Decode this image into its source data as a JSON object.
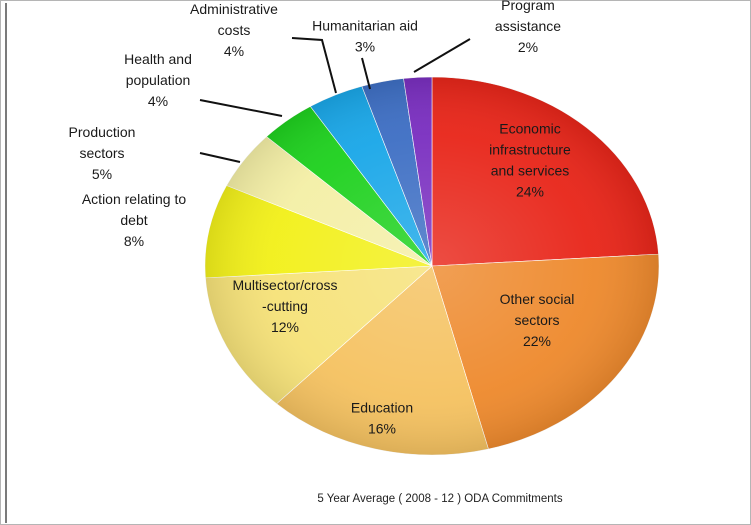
{
  "chart_data": {
    "type": "pie",
    "title": "",
    "caption": "5 Year Average ( 2008 - 12 ) ODA Commitments",
    "legend": "none",
    "slices": [
      {
        "label": "Economic\ninfrastructure\nand services",
        "percent": "24%",
        "value": 24,
        "color": "#e8261a"
      },
      {
        "label": "Other social\nsectors",
        "percent": "22%",
        "value": 22,
        "color": "#ee8a2e"
      },
      {
        "label": "Education",
        "percent": "16%",
        "value": 16,
        "color": "#f5c261"
      },
      {
        "label": "Multisector/cross\n-cutting",
        "percent": "12%",
        "value": 12,
        "color": "#f6e279"
      },
      {
        "label": "Action relating to\ndebt",
        "percent": "8%",
        "value": 8,
        "color": "#f2f01a"
      },
      {
        "label": "Production\nsectors",
        "percent": "5%",
        "value": 5,
        "color": "#f4efa6"
      },
      {
        "label": "Health and\npopulation",
        "percent": "4%",
        "value": 4,
        "color": "#1fd11f"
      },
      {
        "label": "Administrative\ncosts",
        "percent": "4%",
        "value": 4,
        "color": "#1aa7e8"
      },
      {
        "label": "Humanitarian aid",
        "percent": "3%",
        "value": 3,
        "color": "#3e6fc4"
      },
      {
        "label": "Program\nassistance",
        "percent": "2%",
        "value": 2,
        "color": "#7a2fc0"
      }
    ]
  }
}
